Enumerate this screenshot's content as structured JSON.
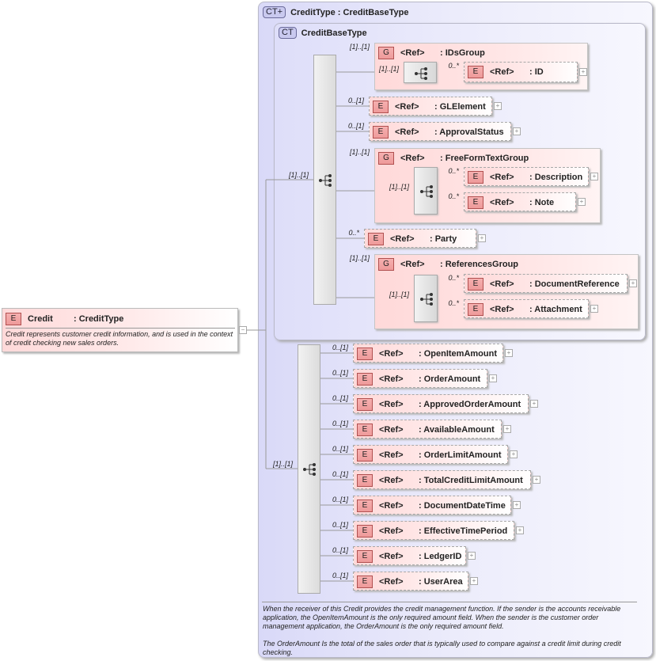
{
  "root": {
    "kind": "E",
    "name": "Credit",
    "type": ": CreditType",
    "doc": "Credit represents customer credit information, and is used in the context of credit checking new sales orders.",
    "collapse_icon": "minus-icon"
  },
  "complex_type": {
    "badge": "CT+",
    "title": "CreditType : CreditBaseType",
    "doc_1": "When the receiver of this Credit provides the credit management function.  If the sender is the accounts receivable application, the OpenItemAmount is the only required amount field.  When the sender is the customer order management application, the OrderAmount is the only required amount field.",
    "doc_2": "The OrderAmount Is the total of the sales order that is typically used to compare against a credit limit during credit checking."
  },
  "base_type": {
    "badge": "CT",
    "title": "CreditBaseType",
    "seq_card": "[1]..[1]"
  },
  "ext_seq_card": "[1]..[1]",
  "base_items": [
    {
      "kind": "G",
      "ref": "<Ref>",
      "name": ": IDsGroup",
      "card": "[1]..[1]",
      "seq_card": "[1]..[1]",
      "children": [
        {
          "kind": "E",
          "ref": "<Ref>",
          "name": ": ID",
          "card": "0..*"
        }
      ]
    },
    {
      "kind": "E",
      "ref": "<Ref>",
      "name": ": GLElement",
      "card": "0..[1]"
    },
    {
      "kind": "E",
      "ref": "<Ref>",
      "name": ": ApprovalStatus",
      "card": "0..[1]"
    },
    {
      "kind": "G",
      "ref": "<Ref>",
      "name": ": FreeFormTextGroup",
      "card": "[1]..[1]",
      "seq_card": "[1]..[1]",
      "children": [
        {
          "kind": "E",
          "ref": "<Ref>",
          "name": ": Description",
          "card": "0..*"
        },
        {
          "kind": "E",
          "ref": "<Ref>",
          "name": ": Note",
          "card": "0..*"
        }
      ]
    },
    {
      "kind": "E",
      "ref": "<Ref>",
      "name": ": Party",
      "card": "0..*"
    },
    {
      "kind": "G",
      "ref": "<Ref>",
      "name": ": ReferencesGroup",
      "card": "[1]..[1]",
      "seq_card": "[1]..[1]",
      "children": [
        {
          "kind": "E",
          "ref": "<Ref>",
          "name": ": DocumentReference",
          "card": "0..*"
        },
        {
          "kind": "E",
          "ref": "<Ref>",
          "name": ": Attachment",
          "card": "0..*"
        }
      ]
    }
  ],
  "ext_items": [
    {
      "kind": "E",
      "ref": "<Ref>",
      "name": ": OpenItemAmount",
      "card": "0..[1]"
    },
    {
      "kind": "E",
      "ref": "<Ref>",
      "name": ": OrderAmount",
      "card": "0..[1]"
    },
    {
      "kind": "E",
      "ref": "<Ref>",
      "name": ": ApprovedOrderAmount",
      "card": "0..[1]"
    },
    {
      "kind": "E",
      "ref": "<Ref>",
      "name": ": AvailableAmount",
      "card": "0..[1]"
    },
    {
      "kind": "E",
      "ref": "<Ref>",
      "name": ": OrderLimitAmount",
      "card": "0..[1]"
    },
    {
      "kind": "E",
      "ref": "<Ref>",
      "name": ": TotalCreditLimitAmount",
      "card": "0..[1]"
    },
    {
      "kind": "E",
      "ref": "<Ref>",
      "name": ": DocumentDateTime",
      "card": "0..[1]"
    },
    {
      "kind": "E",
      "ref": "<Ref>",
      "name": ": EffectiveTimePeriod",
      "card": "0..[1]"
    },
    {
      "kind": "E",
      "ref": "<Ref>",
      "name": ": LedgerID",
      "card": "0..[1]"
    },
    {
      "kind": "E",
      "ref": "<Ref>",
      "name": ": UserArea",
      "card": "0..[1]"
    }
  ],
  "colors": {
    "element_fill": "#ffd9d9",
    "element_icon": "#ee9a9a",
    "complex_type_fill": "#d9d9f8",
    "line": "#999999"
  }
}
